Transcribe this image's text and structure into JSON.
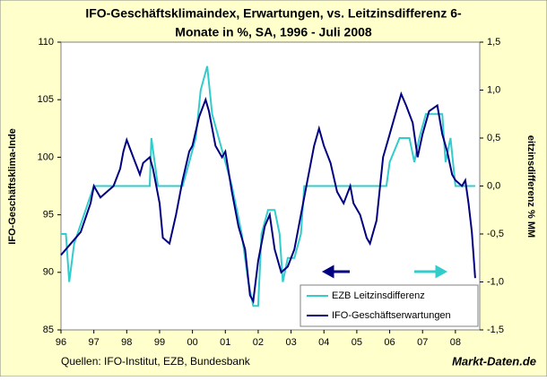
{
  "chart_data": {
    "type": "line",
    "title": [
      "IFO-Geschäftsklimaindex, Erwartungen, vs. Leitzinsdifferenz 6-",
      "Monate in %, SA, 1996 - Juli 2008"
    ],
    "y_label": "IFO-Geschäftsklima-Inde",
    "y2_label": "eitzinsdifferenz % MM",
    "source": "Quellen: IFO-Institut, EZB, Bundesbank",
    "brand": "Markt-Daten.de",
    "xlim": [
      1996,
      2008.74
    ],
    "xticks": [
      {
        "value": 1996,
        "label": "96"
      },
      {
        "value": 1997,
        "label": "97"
      },
      {
        "value": 1998,
        "label": "98"
      },
      {
        "value": 1999,
        "label": "99"
      },
      {
        "value": 2000,
        "label": "00"
      },
      {
        "value": 2001,
        "label": "01"
      },
      {
        "value": 2002,
        "label": "02"
      },
      {
        "value": 2003,
        "label": "03"
      },
      {
        "value": 2004,
        "label": "04"
      },
      {
        "value": 2005,
        "label": "05"
      },
      {
        "value": 2006,
        "label": "06"
      },
      {
        "value": 2007,
        "label": "07"
      },
      {
        "value": 2008,
        "label": "08"
      }
    ],
    "ylim": [
      85,
      110
    ],
    "yticks": [
      85,
      90,
      95,
      100,
      105,
      110
    ],
    "y2lim": [
      -1.5,
      1.5
    ],
    "y2ticks": [
      {
        "value": -1.5,
        "label": "-1,5"
      },
      {
        "value": -1,
        "label": "-1,0"
      },
      {
        "value": -0.5,
        "label": "-0,5"
      },
      {
        "value": 0,
        "label": "0,0"
      },
      {
        "value": 0.5,
        "label": "0,5"
      },
      {
        "value": 1,
        "label": "1,0"
      },
      {
        "value": 1.5,
        "label": "1,5"
      }
    ],
    "series": [
      {
        "name": "EZB Leitzinsdifferenz",
        "color": "#33cccc",
        "axis": "y2",
        "x": [
          1996.0,
          1996.15,
          1996.25,
          1996.4,
          1996.6,
          1996.8,
          1997.0,
          1998.7,
          1998.75,
          1998.95,
          1999.7,
          1999.9,
          2000.1,
          2000.25,
          2000.45,
          2000.6,
          2000.8,
          2001.0,
          2001.2,
          2001.5,
          2001.7,
          2001.85,
          2002.0,
          2002.1,
          2002.3,
          2002.5,
          2002.65,
          2002.75,
          2002.9,
          2003.1,
          2003.3,
          2003.4,
          2005.9,
          2006.0,
          2006.3,
          2006.6,
          2006.75,
          2006.9,
          2007.1,
          2007.3,
          2007.6,
          2007.7,
          2007.85,
          2008.0,
          2008.6
        ],
        "values": [
          -0.5,
          -0.5,
          -1.0,
          -0.6,
          -0.4,
          -0.2,
          0,
          0,
          0.5,
          0,
          0,
          0.25,
          0.5,
          1.0,
          1.25,
          0.75,
          0.5,
          0.25,
          0,
          -0.5,
          -1.0,
          -1.25,
          -1.25,
          -0.5,
          -0.25,
          -0.25,
          -0.5,
          -1.0,
          -0.75,
          -0.75,
          -0.5,
          0,
          0,
          0.25,
          0.5,
          0.5,
          0.25,
          0.5,
          0.75,
          0.75,
          0.75,
          0.25,
          0.5,
          0,
          0
        ]
      },
      {
        "name": "IFO-Geschäftserwartungen",
        "color": "#000080",
        "x": [
          1996.0,
          1996.3,
          1996.6,
          1996.9,
          1997.0,
          1997.2,
          1997.4,
          1997.6,
          1997.8,
          1997.9,
          1998.0,
          1998.2,
          1998.4,
          1998.5,
          1998.7,
          1998.8,
          1999.0,
          1999.1,
          1999.3,
          1999.5,
          1999.7,
          1999.9,
          2000.0,
          2000.2,
          2000.4,
          2000.5,
          2000.7,
          2000.9,
          2001.0,
          2001.2,
          2001.4,
          2001.6,
          2001.75,
          2001.85,
          2002.0,
          2002.2,
          2002.35,
          2002.5,
          2002.7,
          2002.9,
          2003.1,
          2003.3,
          2003.5,
          2003.7,
          2003.85,
          2004.0,
          2004.2,
          2004.4,
          2004.6,
          2004.8,
          2004.9,
          2005.1,
          2005.3,
          2005.4,
          2005.6,
          2005.8,
          2006.0,
          2006.2,
          2006.35,
          2006.5,
          2006.7,
          2006.85,
          2007.0,
          2007.2,
          2007.45,
          2007.6,
          2007.75,
          2007.9,
          2008.0,
          2008.2,
          2008.3,
          2008.4,
          2008.5,
          2008.6
        ],
        "values": [
          91.5,
          92.5,
          93.5,
          96,
          97.5,
          96.5,
          97,
          97.5,
          99,
          100.5,
          101.5,
          100,
          98.5,
          99.5,
          100,
          99,
          96,
          93,
          92.5,
          95,
          98,
          100.5,
          101,
          103.5,
          105,
          104,
          101,
          100,
          100.5,
          97,
          94,
          92,
          88,
          87.5,
          91,
          94,
          95,
          92,
          90,
          90.5,
          92,
          95,
          98,
          101,
          102.5,
          101,
          99.5,
          97,
          96,
          97.5,
          96,
          95,
          93,
          92.5,
          94.5,
          100,
          102,
          104,
          105.5,
          104.5,
          103,
          100,
          102,
          104,
          104.5,
          102,
          100.5,
          98.5,
          98,
          97.5,
          98,
          96,
          93.5,
          89.5
        ]
      }
    ]
  }
}
